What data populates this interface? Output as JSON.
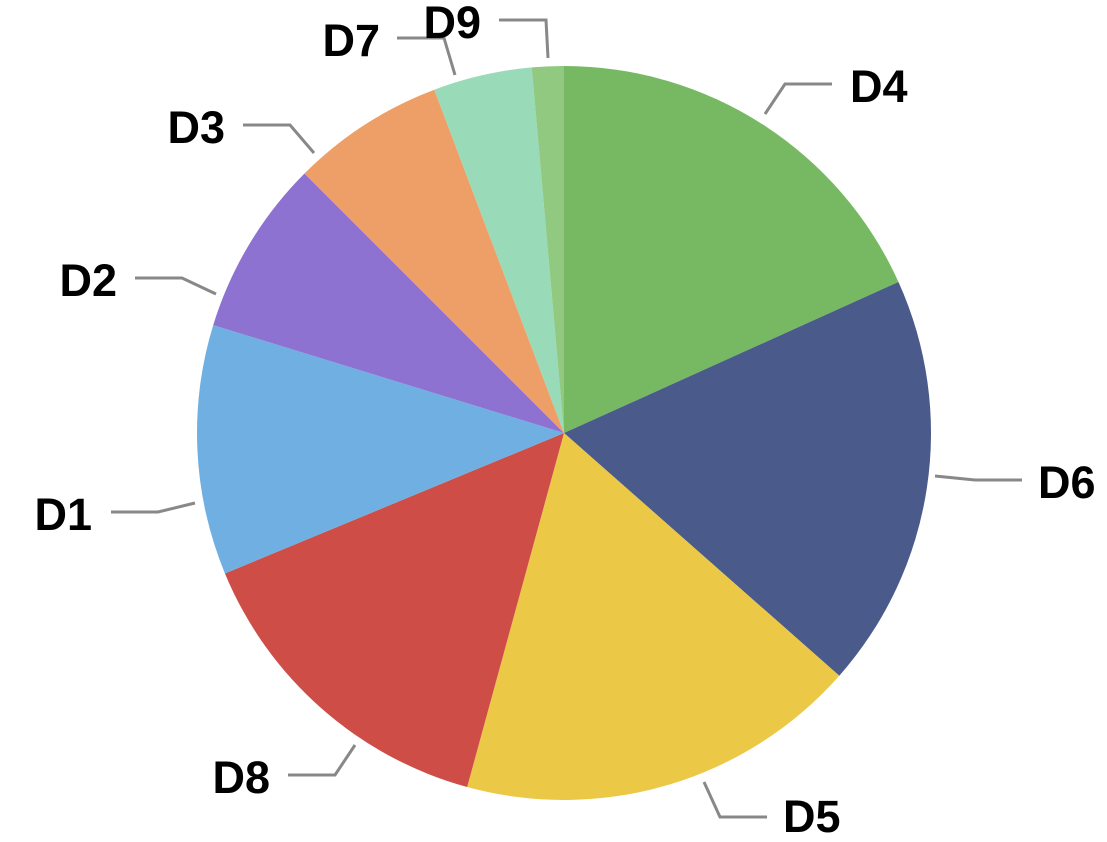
{
  "chart_data": {
    "type": "pie",
    "title": "",
    "start_angle_deg": 0,
    "direction": "clockwise",
    "legend": "none",
    "slices": [
      {
        "label": "D4",
        "value": 18.25,
        "color": "#77B963"
      },
      {
        "label": "D6",
        "value": 18.25,
        "color": "#4A5A8A"
      },
      {
        "label": "D5",
        "value": 17.75,
        "color": "#ECC847"
      },
      {
        "label": "D8",
        "value": 14.5,
        "color": "#CE4D47"
      },
      {
        "label": "D1",
        "value": 11.0,
        "color": "#70AFE1"
      },
      {
        "label": "D2",
        "value": 7.75,
        "color": "#8D72D1"
      },
      {
        "label": "D3",
        "value": 6.75,
        "color": "#EE9F67"
      },
      {
        "label": "D7",
        "value": 4.35,
        "color": "#99DAB9"
      },
      {
        "label": "D9",
        "value": 1.4,
        "color": "#90C97F"
      }
    ]
  }
}
